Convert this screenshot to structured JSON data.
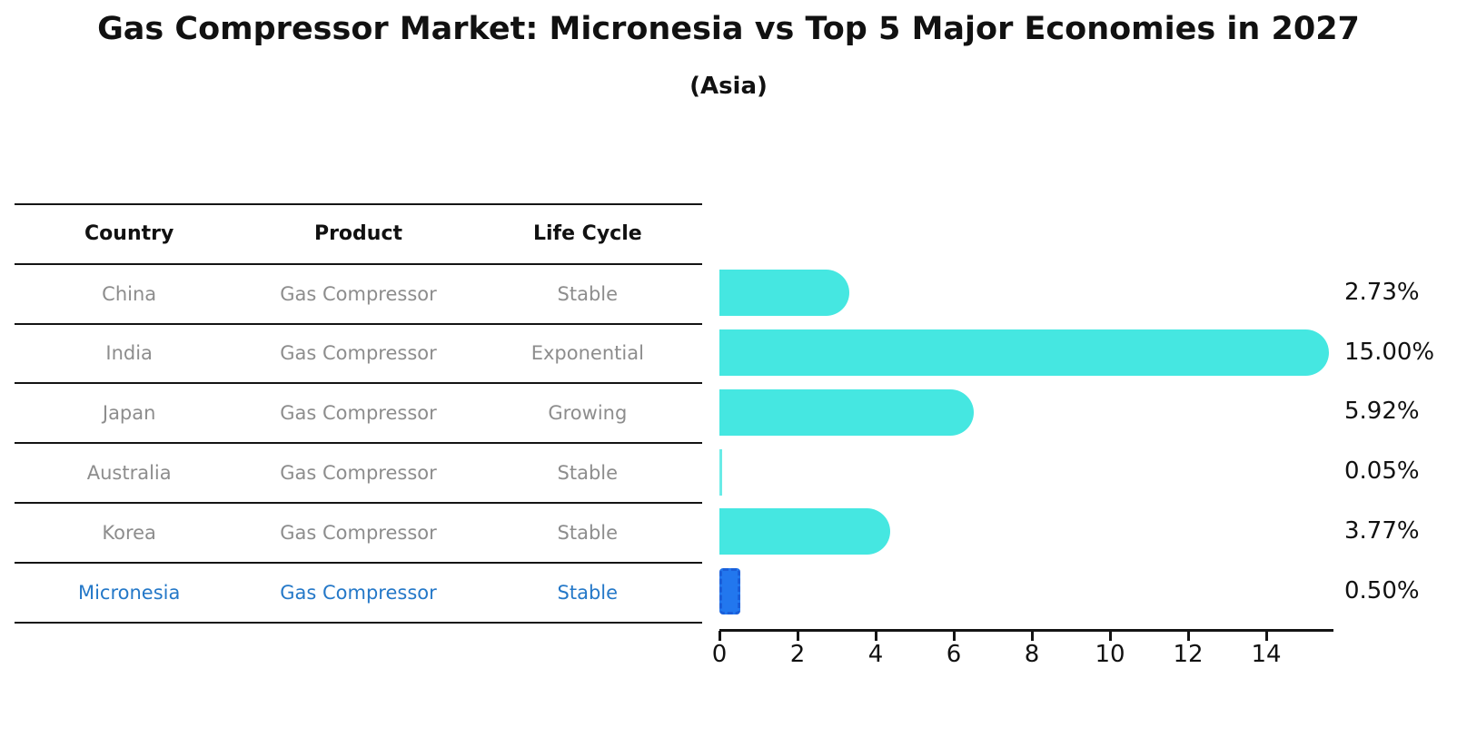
{
  "title": "Gas Compressor Market: Micronesia vs Top 5 Major Economies in 2027",
  "subtitle": "(Asia)",
  "table": {
    "headers": [
      "Country",
      "Product",
      "Life Cycle"
    ],
    "rows": [
      {
        "country": "China",
        "product": "Gas Compressor",
        "life_cycle": "Stable",
        "highlight": false
      },
      {
        "country": "India",
        "product": "Gas Compressor",
        "life_cycle": "Exponential",
        "highlight": false
      },
      {
        "country": "Japan",
        "product": "Gas Compressor",
        "life_cycle": "Growing",
        "highlight": false
      },
      {
        "country": "Australia",
        "product": "Gas Compressor",
        "life_cycle": "Stable",
        "highlight": false
      },
      {
        "country": "Korea",
        "product": "Gas Compressor",
        "life_cycle": "Stable",
        "highlight": false
      },
      {
        "country": "Micronesia",
        "product": "Gas Compressor",
        "life_cycle": "Stable",
        "highlight": true
      }
    ]
  },
  "chart_data": {
    "type": "bar",
    "orientation": "horizontal",
    "title": "Gas Compressor Market: Micronesia vs Top 5 Major Economies in 2027 (Asia)",
    "categories": [
      "China",
      "India",
      "Japan",
      "Australia",
      "Korea",
      "Micronesia"
    ],
    "values": [
      2.73,
      15.0,
      5.92,
      0.05,
      3.77,
      0.5
    ],
    "value_labels": [
      "2.73%",
      "15.00%",
      "5.92%",
      "0.05%",
      "3.77%",
      "0.50%"
    ],
    "xlabel": "",
    "ylabel": "",
    "xticks": [
      0,
      2,
      4,
      6,
      8,
      10,
      12,
      14
    ],
    "xlim": [
      0,
      15.7
    ],
    "grid": false,
    "legend": "none",
    "highlight_index": 5,
    "colors": {
      "bar": "#45E7E1",
      "highlight_bar": "#2277EE",
      "highlight_border": "#1A5ED9",
      "highlight_text": "#2478C8",
      "table_text": "#8d8d8d",
      "axis_and_labels": "#111111"
    }
  }
}
